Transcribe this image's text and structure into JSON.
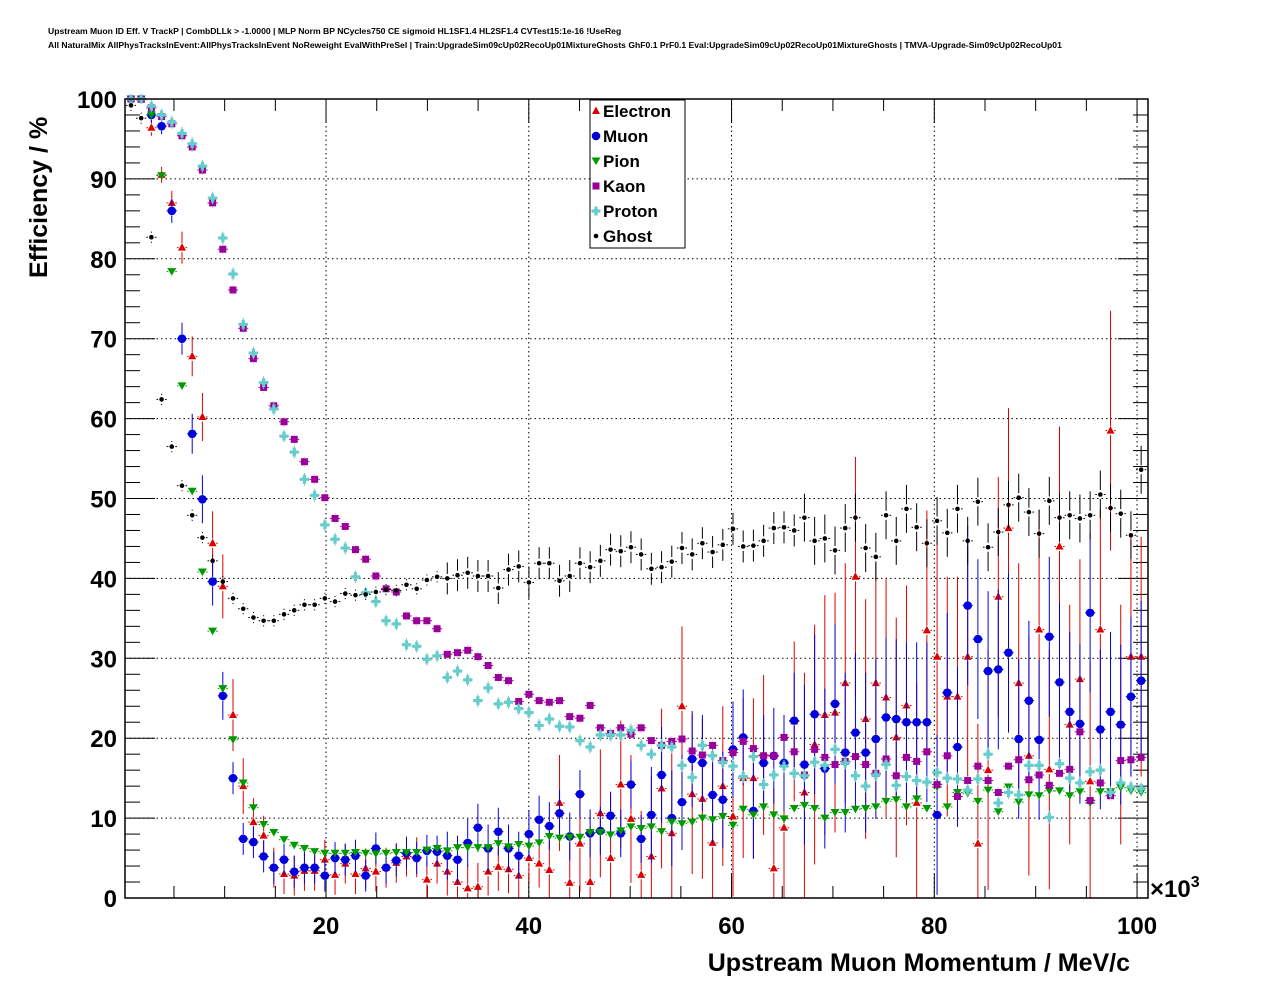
{
  "chart_data": {
    "type": "scatter",
    "title": [
      "Upstream Muon ID Eff. V TrackP | CombDLLk > -1.0000 | MLP Norm BP NCycles750 CE sigmoid HL1SF1.4 HL2SF1.4 CVTest15:1e-16 !UseReg",
      "All NaturalMix AllPhysTracksInEvent:AllPhysTracksInEvent NoReweight EvalWithPreSel | Train:UpgradeSim09cUp02RecoUp01MixtureGhosts GhF0.1 PrF0.1 Eval:UpgradeSim09cUp02RecoUp01MixtureGhosts | TMVA-Upgrade-Sim09cUp02RecoUp01"
    ],
    "xlabel": "Upstream Muon Momentum / MeV/c",
    "ylabel": "Efficiency / %",
    "x_multiplier": "×10",
    "x_multiplier_exp": "3",
    "xlim": [
      0.17,
      101.08
    ],
    "ylim": [
      0,
      100
    ],
    "xticks": [
      20,
      40,
      60,
      80,
      100
    ],
    "yticks": [
      0,
      10,
      20,
      30,
      40,
      50,
      60,
      70,
      80,
      90,
      100
    ],
    "grid": true,
    "legend": "top-center",
    "bins": {
      "first_center": 0.76,
      "width": 1.0065,
      "count": 100
    },
    "series": [
      {
        "name": "Electron",
        "color": "#dd0000",
        "marker": "triangle-up",
        "values": [
          100,
          99.9,
          96.4,
          90.5,
          87.0,
          81.4,
          67.8,
          60.2,
          44.4,
          39.0,
          22.9,
          14.0,
          9.5,
          7.8,
          3.8,
          3.0,
          2.8,
          3.4,
          3.4,
          4.8,
          2.9,
          4.3,
          3.0,
          3.7,
          3.3,
          3.8,
          4.4,
          5.2,
          5.1,
          2.3,
          4.3,
          3.3,
          2.0,
          1.2,
          1.4,
          3.3,
          3.9,
          3.6,
          2.8,
          5.0,
          4.3,
          3.5,
          11.9,
          1.9,
          6.8,
          2.0,
          10.6,
          5.0,
          14.2,
          9.9,
          2.9,
          5.2,
          13.7,
          8.1,
          24.0,
          13.0,
          12.4,
          6.9,
          14.0,
          10.2,
          15.0,
          15.0,
          17.9,
          3.7,
          8.8,
          22.1,
          13.2,
          19.2,
          22.9,
          23.2,
          26.9,
          40.2,
          22.4,
          26.9,
          25.1,
          20.1,
          24.1,
          11.9,
          33.5,
          30.2,
          25.2,
          25.2,
          30.2,
          6.8,
          16.0,
          37.7,
          46.3,
          26.9,
          17.8,
          33.6,
          16.1,
          44.0,
          21.7,
          27.4,
          14.6,
          33.6,
          58.5,
          21.7,
          30.2,
          30.2
        ],
        "yerr": [
          0.5,
          0.5,
          1,
          1,
          1.5,
          2,
          2.5,
          3,
          4,
          4,
          4.5,
          3.5,
          3,
          2.5,
          2.5,
          2.5,
          2.5,
          2.5,
          2.5,
          2.5,
          2.5,
          2.5,
          2.5,
          2.5,
          2.5,
          2.5,
          2.5,
          2.5,
          2.5,
          2.5,
          2.5,
          3,
          3,
          3,
          3,
          3,
          3,
          3,
          3,
          3,
          3,
          5,
          6,
          5,
          6,
          7,
          8,
          8,
          8,
          8,
          8,
          10,
          10,
          10,
          10,
          10,
          10,
          10,
          10,
          10,
          10,
          10,
          10,
          10,
          10,
          10,
          15,
          15,
          15,
          15,
          15,
          15,
          15,
          15,
          15,
          15,
          15,
          15,
          15,
          15,
          15,
          15,
          15,
          15,
          15,
          15,
          15,
          15,
          15,
          15,
          15,
          15,
          15,
          15,
          15,
          15,
          15,
          15,
          15,
          15
        ]
      },
      {
        "name": "Muon",
        "color": "#0000dd",
        "marker": "circle",
        "values": [
          100,
          100,
          98.0,
          96.6,
          86.0,
          70.0,
          58.1,
          49.9,
          39.6,
          25.3,
          15.0,
          7.4,
          7.0,
          5.2,
          3.8,
          4.8,
          3.3,
          3.8,
          3.8,
          2.8,
          5.0,
          4.8,
          5.3,
          2.8,
          6.2,
          3.8,
          4.7,
          5.6,
          5.0,
          5.9,
          5.8,
          5.3,
          4.8,
          6.9,
          8.8,
          6.2,
          8.3,
          6.2,
          5.3,
          8.0,
          9.8,
          9.0,
          10.6,
          7.7,
          13.0,
          8.1,
          8.4,
          10.3,
          8.1,
          14.2,
          7.4,
          10.4,
          15.4,
          10.0,
          12.0,
          17.4,
          16.9,
          12.9,
          12.3,
          18.6,
          20.1,
          10.9,
          16.9,
          17.8,
          16.9,
          22.2,
          16.7,
          23.0,
          16.2,
          24.3,
          18.2,
          20.7,
          18.2,
          19.9,
          22.6,
          22.4,
          22.0,
          22.0,
          22.0,
          10.4,
          25.7,
          18.9,
          36.6,
          32.4,
          28.4,
          28.6,
          30.7,
          19.9,
          24.7,
          19.8,
          32.7,
          27.0,
          23.3,
          21.8,
          35.7,
          21.1,
          23.3,
          21.7,
          25.2,
          27.2
        ],
        "yerr": [
          1,
          1,
          1,
          1,
          1.5,
          2,
          2.5,
          3,
          3,
          3,
          2,
          2,
          2,
          2,
          2,
          2,
          2,
          2,
          2,
          2,
          2,
          2,
          2,
          2,
          2,
          2,
          2,
          2,
          2,
          2,
          2,
          3,
          3,
          3,
          3,
          3,
          3,
          3,
          3,
          3,
          3,
          3,
          3,
          3,
          3,
          3,
          3,
          3,
          3,
          3,
          3,
          6,
          6,
          6,
          6,
          6,
          6,
          6,
          6,
          6,
          6,
          6,
          6,
          6,
          6,
          6,
          10,
          10,
          10,
          10,
          10,
          10,
          10,
          10,
          10,
          10,
          10,
          10,
          10,
          10,
          10,
          10,
          10,
          10,
          10,
          10,
          10,
          10,
          10,
          10,
          10,
          10,
          10,
          10,
          10,
          10,
          10,
          10,
          10,
          10
        ]
      },
      {
        "name": "Pion",
        "color": "#009900",
        "marker": "triangle-down",
        "values": [
          100,
          100,
          98.0,
          90.4,
          78.4,
          64.1,
          50.9,
          40.8,
          33.4,
          26.2,
          19.8,
          14.4,
          11.3,
          9.2,
          8.2,
          7.3,
          6.6,
          6.2,
          5.8,
          5.6,
          5.6,
          5.6,
          5.7,
          5.6,
          5.5,
          5.6,
          5.7,
          5.7,
          5.7,
          6.0,
          6.2,
          5.9,
          6.3,
          6.3,
          6.3,
          6.3,
          6.8,
          6.4,
          6.7,
          6.5,
          6.9,
          7.7,
          7.5,
          7.6,
          7.6,
          8.2,
          8.2,
          7.9,
          8.4,
          8.9,
          8.7,
          8.9,
          8.3,
          9.5,
          9.3,
          9.5,
          10.0,
          9.8,
          10.2,
          9.1,
          11.1,
          10.4,
          11.4,
          10.4,
          9.9,
          11.2,
          11.6,
          11.2,
          10.0,
          10.7,
          10.7,
          11.1,
          11.2,
          11.4,
          12.1,
          12.3,
          11.4,
          12.4,
          11.2,
          13.9,
          11.4,
          13.2,
          13.1,
          12.1,
          13.5,
          10.8,
          13.9,
          12.0,
          12.9,
          12.8,
          13.4,
          13.4,
          12.8,
          13.3,
          11.9,
          13.3,
          13.3,
          13.8,
          13.4,
          13.2
        ],
        "yerr": 0.6
      },
      {
        "name": "Kaon",
        "color": "#990099",
        "marker": "square",
        "values": [
          100,
          100,
          98.9,
          97.8,
          96.9,
          95.4,
          94,
          91.1,
          87,
          81.2,
          76.1,
          71.3,
          67.5,
          63.9,
          61.6,
          59.6,
          57.4,
          54.6,
          52.4,
          50.1,
          47.5,
          46.5,
          43.6,
          42.4,
          40.3,
          38.7,
          38.3,
          35.3,
          34.7,
          34.7,
          33.7,
          30.5,
          30.7,
          31,
          30.2,
          29.1,
          27.6,
          27.2,
          24.6,
          25.5,
          24.7,
          24.5,
          24.7,
          22.7,
          22.5,
          24.1,
          21.3,
          20.6,
          21.3,
          20.5,
          21.3,
          19.7,
          19.1,
          19.6,
          19.9,
          18.4,
          17.9,
          19.1,
          17.2,
          18.2,
          19.6,
          18.7,
          17.8,
          17.8,
          20.1,
          18.3,
          15.4,
          18.6,
          17.6,
          16.7,
          17.1,
          17.7,
          16.7,
          15.6,
          17.4,
          15.3,
          17.6,
          17.1,
          18.3,
          14.2,
          17.8,
          12.7,
          14.7,
          16.5,
          14.7,
          13.2,
          16.5,
          17.3,
          14.8,
          15.4,
          14.1,
          15.6,
          16.1,
          20.8,
          12.2,
          14.4,
          12.8,
          17.2,
          17.3,
          17.6
        ],
        "yerr": 0.6
      },
      {
        "name": "Proton",
        "color": "#66cccc",
        "marker": "cross",
        "values": [
          100,
          100,
          99.1,
          98,
          97.1,
          95.7,
          94.4,
          91.6,
          87.6,
          82.6,
          78.1,
          71.8,
          68.2,
          64.5,
          61.2,
          57.8,
          55.8,
          52.4,
          50.4,
          46.7,
          44.9,
          43.8,
          40.2,
          38.2,
          37.1,
          34.7,
          34.3,
          31.7,
          31.5,
          29.9,
          30.3,
          27.6,
          28.4,
          27.3,
          24.7,
          26.3,
          24.3,
          24.5,
          23.7,
          23.2,
          21.6,
          22.4,
          21.5,
          21.4,
          19.7,
          18.9,
          20.4,
          20.4,
          20.4,
          21.0,
          19.1,
          18.0,
          19.1,
          18.9,
          16.6,
          15.1,
          19.1,
          17.8,
          17.0,
          16.5,
          15.2,
          17.7,
          14.2,
          15.4,
          16.5,
          15.6,
          15.3,
          17.0,
          16.6,
          18.6,
          16.9,
          15.3,
          14.0,
          15.4,
          16.7,
          14.1,
          15.2,
          14.7,
          14.5,
          15.7,
          15.0,
          14.9,
          13.5,
          14.9,
          18.0,
          11.9,
          13.2,
          12.9,
          16.6,
          16.6,
          10.1,
          16.8,
          15.0,
          14.4,
          15.8,
          16.0,
          13.2,
          14.4,
          13.9,
          13.7
        ],
        "yerr": 0.8
      },
      {
        "name": "Ghost",
        "color": "#000000",
        "marker": "dot",
        "values": [
          99.2,
          97.6,
          82.7,
          62.4,
          56.5,
          51.6,
          47.9,
          45.1,
          42.2,
          39.6,
          37.5,
          36.2,
          35.1,
          34.7,
          34.7,
          35.5,
          36.0,
          36.7,
          36.7,
          37.5,
          37.1,
          38.1,
          37.9,
          38.0,
          38.3,
          38.6,
          38.5,
          39.2,
          38.7,
          39.8,
          40.2,
          40.0,
          40.4,
          40.7,
          40.3,
          40.3,
          38.8,
          41.1,
          41.5,
          39.5,
          41.9,
          41.9,
          39.7,
          40.3,
          41.9,
          41.4,
          42.2,
          43.6,
          43.4,
          43.9,
          43.0,
          41.2,
          41.4,
          42.1,
          43.8,
          43.0,
          44.4,
          43.3,
          44.2,
          46.2,
          44.0,
          44.1,
          44.7,
          46.3,
          46.4,
          46.0,
          47.6,
          44.7,
          45.0,
          43.5,
          46.3,
          47.6,
          43.8,
          42.7,
          47.9,
          44.7,
          48.7,
          46.4,
          44.4,
          47.2,
          45.7,
          48.7,
          44.7,
          49.6,
          43.9,
          45.8,
          49.2,
          50.1,
          48.3,
          45.6,
          49.7,
          47.6,
          47.9,
          47.5,
          47.9,
          50.5,
          48.8,
          48.1,
          45.4,
          53.6
        ],
        "yerr": [
          0.7,
          0.7,
          0.7,
          0.7,
          0.7,
          0.7,
          0.7,
          0.7,
          0.7,
          0.7,
          0.7,
          0.7,
          0.7,
          0.7,
          0.7,
          0.7,
          0.7,
          0.7,
          0.7,
          0.7,
          0.7,
          0.7,
          0.7,
          0.7,
          0.7,
          0.7,
          0.7,
          0.7,
          0.7,
          0.7,
          0.7,
          2,
          2,
          2,
          2,
          2,
          2,
          2,
          2,
          2,
          2,
          2,
          2,
          2,
          2,
          2,
          2,
          2,
          2,
          2,
          2,
          2,
          2,
          2,
          2,
          2,
          2,
          2,
          2,
          2,
          2,
          2,
          2,
          2,
          2,
          2,
          3,
          3,
          3,
          3,
          3,
          3,
          3,
          3,
          3,
          3,
          3,
          3,
          3,
          3,
          3,
          3,
          3,
          3,
          3,
          3,
          3,
          3,
          3,
          3,
          3,
          3,
          3,
          3,
          3,
          3,
          3,
          3,
          3,
          3
        ]
      }
    ]
  }
}
